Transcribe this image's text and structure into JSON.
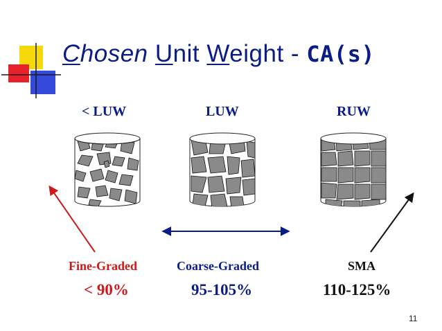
{
  "title": {
    "word1_initial": "C",
    "word1_rest": "hosen",
    "word2_initial": "U",
    "word2_rest": "nit",
    "word3_initial": "W",
    "word3_rest": "eight",
    "separator": "-",
    "suffix": "CA(s)"
  },
  "columns": [
    {
      "header": "< LUW",
      "label": "Fine-Graded",
      "range": "< 90%"
    },
    {
      "header": "LUW",
      "label": "Coarse-Graded",
      "range": "95-105%"
    },
    {
      "header": "RUW",
      "label": "SMA",
      "range": "110-125%"
    }
  ],
  "page_number": "11",
  "colors": {
    "title_blue": "#0a1c87",
    "fine_red": "#cc1a1a",
    "stone_gray": "#8a8a8a",
    "deco_yellow": "#f5d90a",
    "deco_red": "#e8222a",
    "deco_blue": "#1f35d6"
  }
}
